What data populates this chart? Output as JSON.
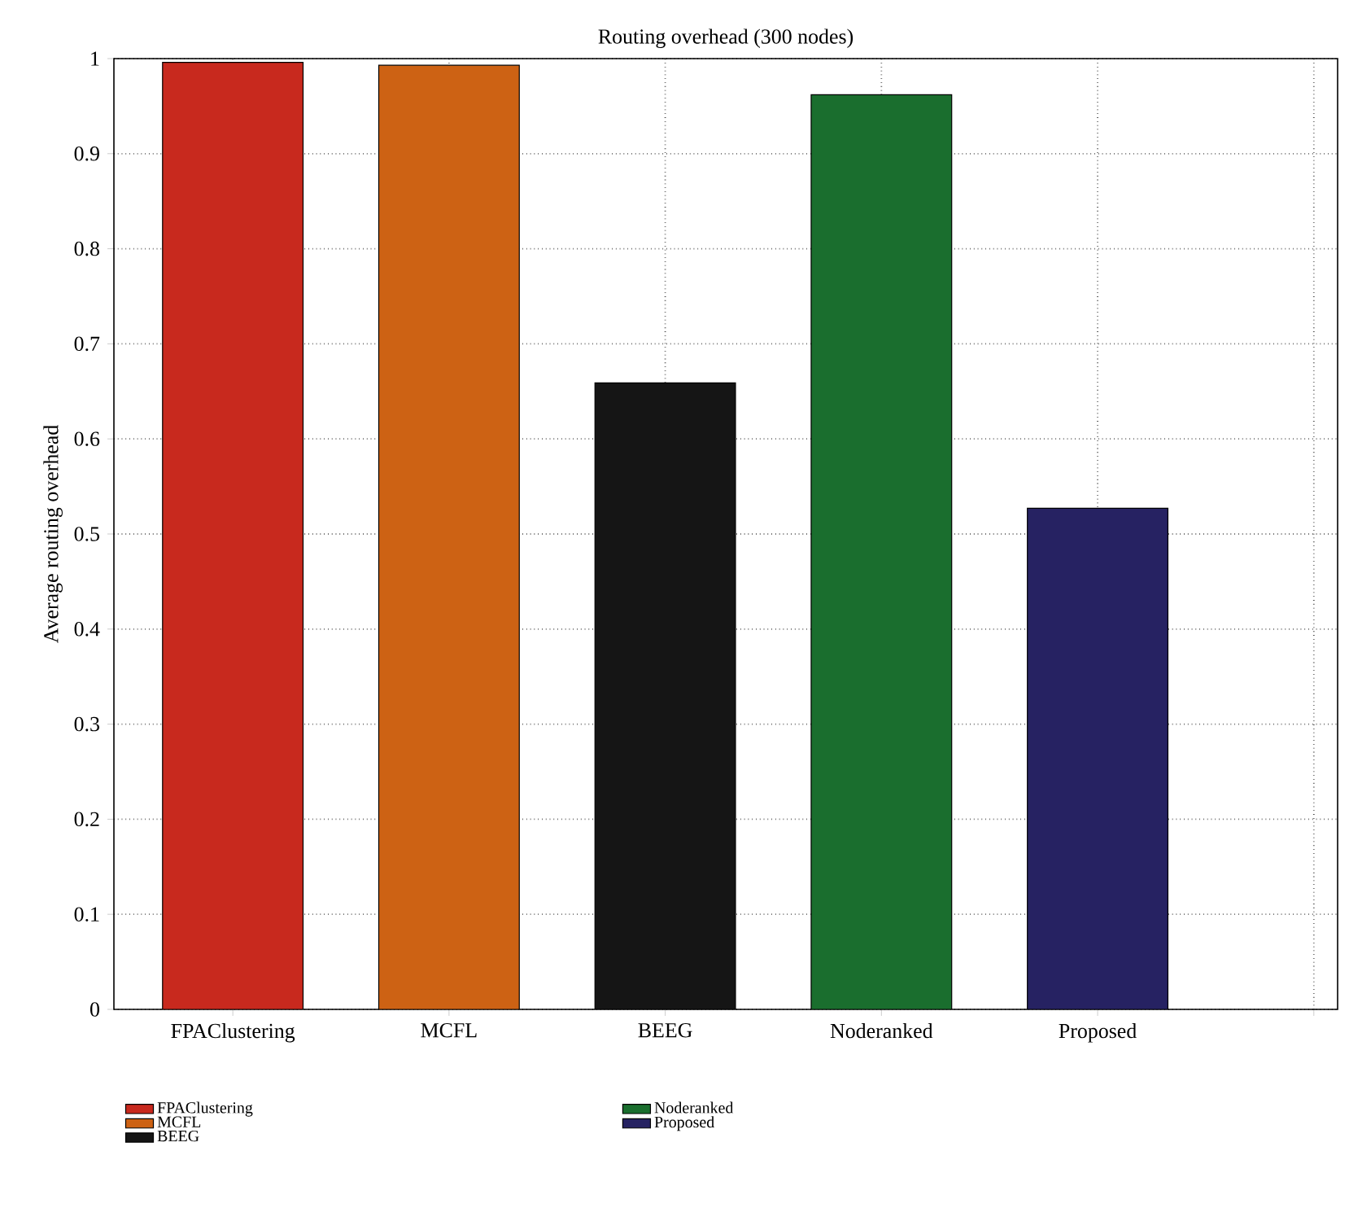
{
  "chart_data": {
    "type": "bar",
    "title": "Routing overhead (300 nodes)",
    "ylabel": "Average routing overhead",
    "categories": [
      "FPAClustering",
      "MCFL",
      "BEEG",
      "Noderanked",
      "Proposed",
      null
    ],
    "series": [
      {
        "name": "FPAClustering",
        "color": "#c8291e",
        "values": [
          0.996,
          null,
          null,
          null,
          null,
          null
        ]
      },
      {
        "name": "MCFL",
        "color": "#cd6214",
        "values": [
          null,
          0.993,
          null,
          null,
          null,
          null
        ]
      },
      {
        "name": "BEEG",
        "color": "#151515",
        "values": [
          null,
          null,
          0.659,
          null,
          null,
          null
        ]
      },
      {
        "name": "Noderanked",
        "color": "#1a6e2e",
        "values": [
          null,
          null,
          null,
          0.962,
          null,
          null
        ]
      },
      {
        "name": "Proposed",
        "color": "#262262",
        "values": [
          null,
          null,
          null,
          null,
          0.527,
          null
        ]
      }
    ],
    "ylim": [
      0,
      1
    ],
    "yticks": [
      0,
      0.1,
      0.2,
      0.3,
      0.4,
      0.5,
      0.6,
      0.7,
      0.8,
      0.9,
      1
    ],
    "grid": true,
    "legend": "bottom"
  }
}
